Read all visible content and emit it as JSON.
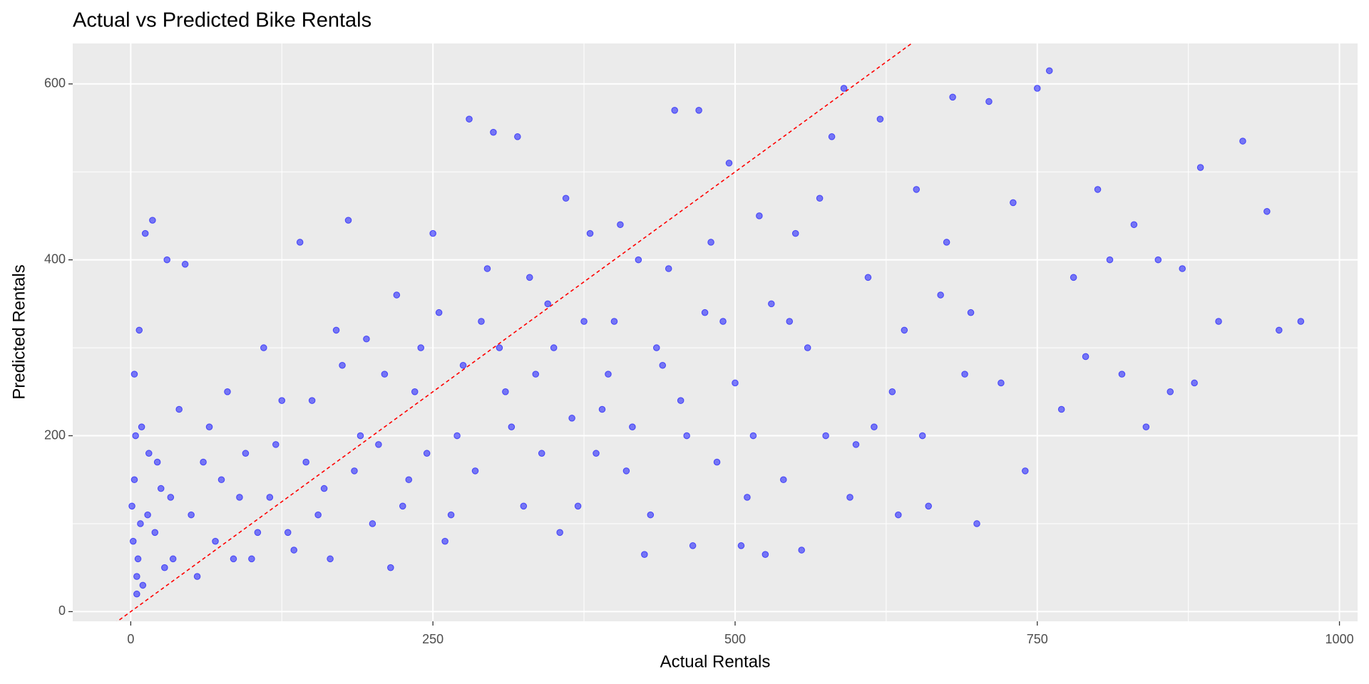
{
  "chart_data": {
    "type": "scatter",
    "title": "Actual vs Predicted Bike Rentals",
    "x_label": "Actual Rentals",
    "y_label": "Predicted Rentals",
    "xlim": [
      -48,
      1015
    ],
    "ylim": [
      -11,
      646
    ],
    "xticks": [
      0,
      250,
      500,
      750,
      1000
    ],
    "yticks": [
      0,
      200,
      400,
      600
    ],
    "x_minor_grid": [
      125,
      375,
      625,
      875
    ],
    "y_minor_grid": [
      100,
      300,
      500
    ],
    "grid": true,
    "reference_line": {
      "slope": 1,
      "intercept": 0,
      "color": "#ff0000"
    },
    "series": [
      {
        "color": "#0000ff",
        "x": [
          2,
          3,
          5,
          1,
          4,
          6,
          8,
          10,
          3,
          7,
          12,
          18,
          30,
          45,
          15,
          20,
          25,
          35,
          40,
          50,
          60,
          70,
          80,
          90,
          100,
          110,
          120,
          130,
          140,
          150,
          160,
          170,
          180,
          190,
          200,
          210,
          220,
          230,
          240,
          250,
          260,
          270,
          280,
          290,
          300,
          310,
          320,
          330,
          340,
          350,
          360,
          370,
          380,
          390,
          400,
          410,
          420,
          430,
          440,
          450,
          460,
          470,
          480,
          490,
          500,
          510,
          520,
          530,
          540,
          550,
          560,
          570,
          580,
          590,
          600,
          610,
          620,
          630,
          640,
          650,
          660,
          670,
          680,
          690,
          700,
          710,
          720,
          730,
          740,
          750,
          760,
          770,
          780,
          790,
          800,
          810,
          820,
          830,
          840,
          850,
          860,
          870,
          880,
          885,
          900,
          920,
          940,
          950,
          968,
          5,
          9,
          14,
          22,
          28,
          33,
          55,
          65,
          75,
          85,
          95,
          105,
          115,
          125,
          135,
          145,
          155,
          165,
          175,
          185,
          195,
          205,
          215,
          225,
          235,
          245,
          255,
          265,
          275,
          285,
          295,
          305,
          315,
          325,
          335,
          345,
          355,
          365,
          375,
          385,
          395,
          405,
          415,
          425,
          435,
          445,
          455,
          465,
          475,
          485,
          495,
          505,
          515,
          525,
          545,
          555,
          575,
          595,
          615,
          635,
          655,
          675,
          695
        ],
        "values": [
          80,
          150,
          40,
          120,
          200,
          60,
          100,
          30,
          270,
          320,
          430,
          445,
          400,
          395,
          180,
          90,
          140,
          60,
          230,
          110,
          170,
          80,
          250,
          130,
          60,
          300,
          190,
          90,
          420,
          240,
          140,
          320,
          445,
          200,
          100,
          270,
          360,
          150,
          300,
          430,
          80,
          200,
          560,
          330,
          545,
          250,
          540,
          380,
          180,
          300,
          470,
          120,
          430,
          230,
          330,
          160,
          400,
          110,
          280,
          570,
          200,
          570,
          420,
          330,
          260,
          130,
          450,
          350,
          150,
          430,
          300,
          470,
          540,
          595,
          190,
          380,
          560,
          250,
          320,
          480,
          120,
          360,
          585,
          270,
          100,
          580,
          260,
          465,
          160,
          595,
          615,
          230,
          380,
          290,
          480,
          400,
          270,
          440,
          210,
          400,
          250,
          390,
          260,
          505,
          330,
          535,
          455,
          320,
          330,
          20,
          210,
          110,
          170,
          50,
          130,
          40,
          210,
          150,
          60,
          180,
          90,
          130,
          240,
          70,
          170,
          110,
          60,
          280,
          160,
          310,
          190,
          50,
          120,
          250,
          180,
          340,
          110,
          280,
          160,
          390,
          300,
          210,
          120,
          270,
          350,
          90,
          220,
          330,
          180,
          270,
          440,
          210,
          65,
          300,
          390,
          240,
          75,
          340,
          170,
          510,
          75,
          200,
          65,
          330,
          70,
          200,
          130,
          210,
          110,
          200,
          420,
          340
        ]
      }
    ]
  }
}
